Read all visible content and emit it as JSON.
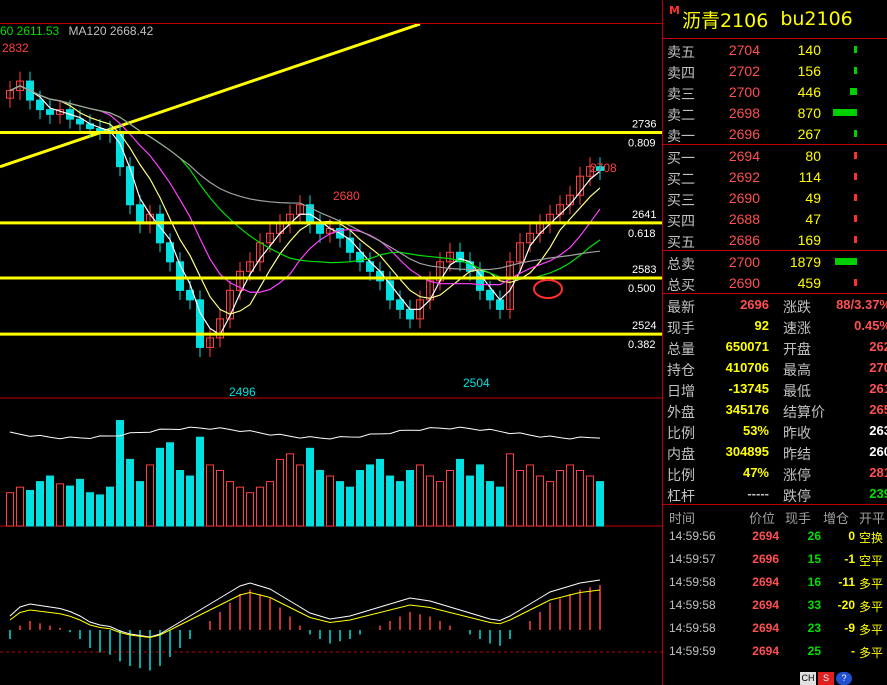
{
  "legend": {
    "ma60_label": "60 2611.53",
    "ma120_label": "MA120 2668.42"
  },
  "instrument": {
    "marker": "M",
    "name": "沥青2106",
    "code": "bu2106"
  },
  "orderbook": {
    "asks": [
      {
        "label": "卖五",
        "price": "2704",
        "vol": "140",
        "bar": 0.03
      },
      {
        "label": "卖四",
        "price": "2702",
        "vol": "156",
        "bar": 0.03
      },
      {
        "label": "卖三",
        "price": "2700",
        "vol": "446",
        "bar": 0.3
      },
      {
        "label": "卖二",
        "price": "2698",
        "vol": "870",
        "bar": 1.0
      },
      {
        "label": "卖一",
        "price": "2696",
        "vol": "267",
        "bar": 0.1
      }
    ],
    "bids": [
      {
        "label": "买一",
        "price": "2694",
        "vol": "80",
        "bar": 0.03
      },
      {
        "label": "买二",
        "price": "2692",
        "vol": "114",
        "bar": 0.03
      },
      {
        "label": "买三",
        "price": "2690",
        "vol": "49",
        "bar": 0.03
      },
      {
        "label": "买四",
        "price": "2688",
        "vol": "47",
        "bar": 0.03
      },
      {
        "label": "买五",
        "price": "2686",
        "vol": "169",
        "bar": 0.1
      }
    ],
    "totals": [
      {
        "label": "总卖",
        "price": "2700",
        "vol": "1879",
        "bar": 0.9,
        "color": "green"
      },
      {
        "label": "总买",
        "price": "2690",
        "vol": "459",
        "bar": 0.1,
        "color": "red"
      }
    ]
  },
  "quote": [
    {
      "l1": "最新",
      "v1": "2696",
      "c1": "#ff5050",
      "l2": "涨跌",
      "v2": "88/3.37%",
      "c2": "#ff5050"
    },
    {
      "l1": "现手",
      "v1": "92",
      "c1": "#ffff00",
      "l2": "速涨",
      "v2": "0.45%",
      "c2": "#ff5050"
    },
    {
      "l1": "总量",
      "v1": "650071",
      "c1": "#ffff00",
      "l2": "开盘",
      "v2": "262",
      "c2": "#ff5050"
    },
    {
      "l1": "持仓",
      "v1": "410706",
      "c1": "#ffff00",
      "l2": "最高",
      "v2": "270",
      "c2": "#ff5050"
    },
    {
      "l1": "日增",
      "v1": "-13745",
      "c1": "#ffff00",
      "l2": "最低",
      "v2": "261",
      "c2": "#ff5050"
    },
    {
      "l1": "外盘",
      "v1": "345176",
      "c1": "#ffff00",
      "l2": "结算价",
      "v2": "265",
      "c2": "#ff5050"
    },
    {
      "l1": "比例",
      "v1": "53%",
      "c1": "#ffff00",
      "l2": "昨收",
      "v2": "263",
      "c2": "#ffffff"
    },
    {
      "l1": "内盘",
      "v1": "304895",
      "c1": "#ffff00",
      "l2": "昨结",
      "v2": "260",
      "c2": "#ffffff"
    },
    {
      "l1": "比例",
      "v1": "47%",
      "c1": "#ffff00",
      "l2": "涨停",
      "v2": "281",
      "c2": "#ff5050"
    },
    {
      "l1": "杠杆",
      "v1": "-----",
      "c1": "#c0c0c0",
      "l2": "跌停",
      "v2": "239",
      "c2": "#00e000"
    }
  ],
  "ticks_header": {
    "time": "时间",
    "price": "价位",
    "vol": "现手",
    "oi": "增仓",
    "nature": "开平"
  },
  "ticks": [
    {
      "time": "14:59:56",
      "price": "2694",
      "vol": "26",
      "oi": "0",
      "nature": "空换"
    },
    {
      "time": "14:59:57",
      "price": "2696",
      "vol": "15",
      "oi": "-1",
      "nature": "空平"
    },
    {
      "time": "14:59:58",
      "price": "2694",
      "vol": "16",
      "oi": "-11",
      "nature": "多平"
    },
    {
      "time": "14:59:58",
      "price": "2694",
      "vol": "33",
      "oi": "-20",
      "nature": "多平"
    },
    {
      "time": "14:59:58",
      "price": "2694",
      "vol": "23",
      "oi": "-9",
      "nature": "多平"
    },
    {
      "time": "14:59:59",
      "price": "2694",
      "vol": "25",
      "oi": "-",
      "nature": "多平"
    }
  ],
  "chart_data": {
    "type": "candlestick",
    "price_labels": {
      "high_left": "2832",
      "fib_upper": {
        "price": "2736",
        "ratio": "0.809"
      },
      "fib_mid": {
        "price": "2641",
        "ratio": "0.618"
      },
      "fib_low": {
        "price": "2583",
        "ratio": "0.500"
      },
      "fib_base": {
        "price": "2524",
        "ratio": "0.382"
      },
      "peak_mid": "2680",
      "low_1": "2496",
      "low_2": "2504",
      "last_high": "2708"
    },
    "levels": [
      2736,
      2641,
      2583,
      2524
    ],
    "yrange": [
      2460,
      2850
    ],
    "closes": [
      2780,
      2790,
      2770,
      2760,
      2755,
      2760,
      2750,
      2745,
      2740,
      2738,
      2735,
      2700,
      2660,
      2640,
      2650,
      2620,
      2600,
      2570,
      2560,
      2510,
      2520,
      2540,
      2570,
      2590,
      2600,
      2620,
      2630,
      2640,
      2650,
      2660,
      2640,
      2630,
      2635,
      2625,
      2610,
      2600,
      2590,
      2580,
      2560,
      2550,
      2540,
      2560,
      2580,
      2600,
      2610,
      2600,
      2590,
      2570,
      2560,
      2550,
      2600,
      2620,
      2630,
      2640,
      2650,
      2660,
      2670,
      2690,
      2700,
      2696
    ],
    "volumes": [
      0.3,
      0.35,
      0.32,
      0.4,
      0.45,
      0.38,
      0.36,
      0.42,
      0.3,
      0.28,
      0.35,
      0.95,
      0.6,
      0.4,
      0.55,
      0.7,
      0.75,
      0.5,
      0.45,
      0.8,
      0.55,
      0.5,
      0.4,
      0.35,
      0.3,
      0.35,
      0.4,
      0.6,
      0.65,
      0.55,
      0.7,
      0.5,
      0.45,
      0.4,
      0.35,
      0.5,
      0.55,
      0.6,
      0.45,
      0.4,
      0.5,
      0.55,
      0.45,
      0.4,
      0.5,
      0.6,
      0.45,
      0.55,
      0.4,
      0.35,
      0.65,
      0.5,
      0.55,
      0.45,
      0.4,
      0.5,
      0.55,
      0.5,
      0.45,
      0.4
    ],
    "macd": [
      -0.2,
      0.1,
      0.2,
      0.15,
      0.1,
      0.05,
      -0.05,
      -0.2,
      -0.4,
      -0.5,
      -0.55,
      -0.7,
      -0.8,
      -0.85,
      -0.9,
      -0.8,
      -0.6,
      -0.4,
      -0.2,
      0.0,
      0.2,
      0.4,
      0.6,
      0.8,
      0.9,
      0.8,
      0.7,
      0.5,
      0.3,
      0.1,
      -0.1,
      -0.2,
      -0.3,
      -0.25,
      -0.2,
      -0.1,
      0.0,
      0.1,
      0.2,
      0.3,
      0.4,
      0.35,
      0.3,
      0.2,
      0.1,
      0.0,
      -0.1,
      -0.2,
      -0.3,
      -0.35,
      -0.2,
      0.0,
      0.2,
      0.4,
      0.6,
      0.7,
      0.8,
      0.9,
      0.95,
      1.0
    ]
  }
}
